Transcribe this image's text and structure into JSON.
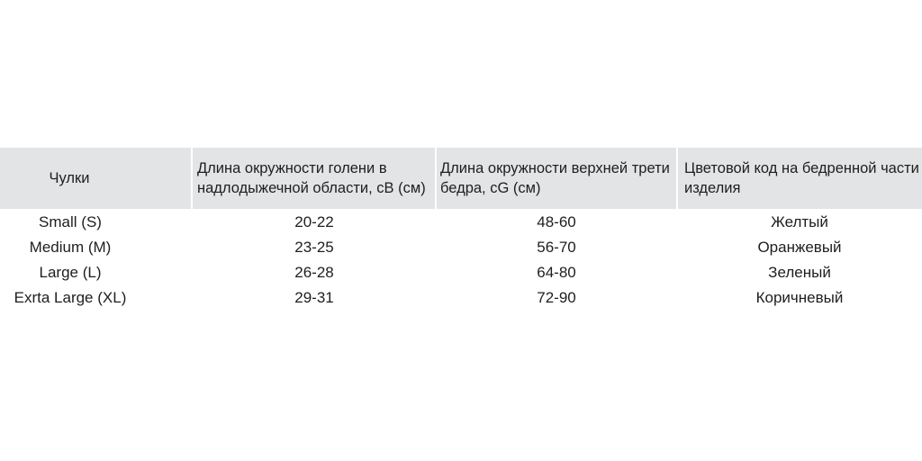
{
  "table": {
    "headers": [
      "Чулки",
      "Длина окружности голени в надлодыжечной области, cB (см)",
      "Длина окружности верхней трети бедра, cG (см)",
      "Цветовой код на бедренной части изделия"
    ],
    "rows": [
      [
        "Small (S)",
        "20-22",
        "48-60",
        "Желтый"
      ],
      [
        "Medium (M)",
        "23-25",
        "56-70",
        "Оранжевый"
      ],
      [
        "Large (L)",
        "26-28",
        "64-80",
        "Зеленый"
      ],
      [
        "Exrta Large (XL)",
        "29-31",
        "72-90",
        "Коричневый"
      ]
    ],
    "header_bg": "#e3e4e6"
  }
}
